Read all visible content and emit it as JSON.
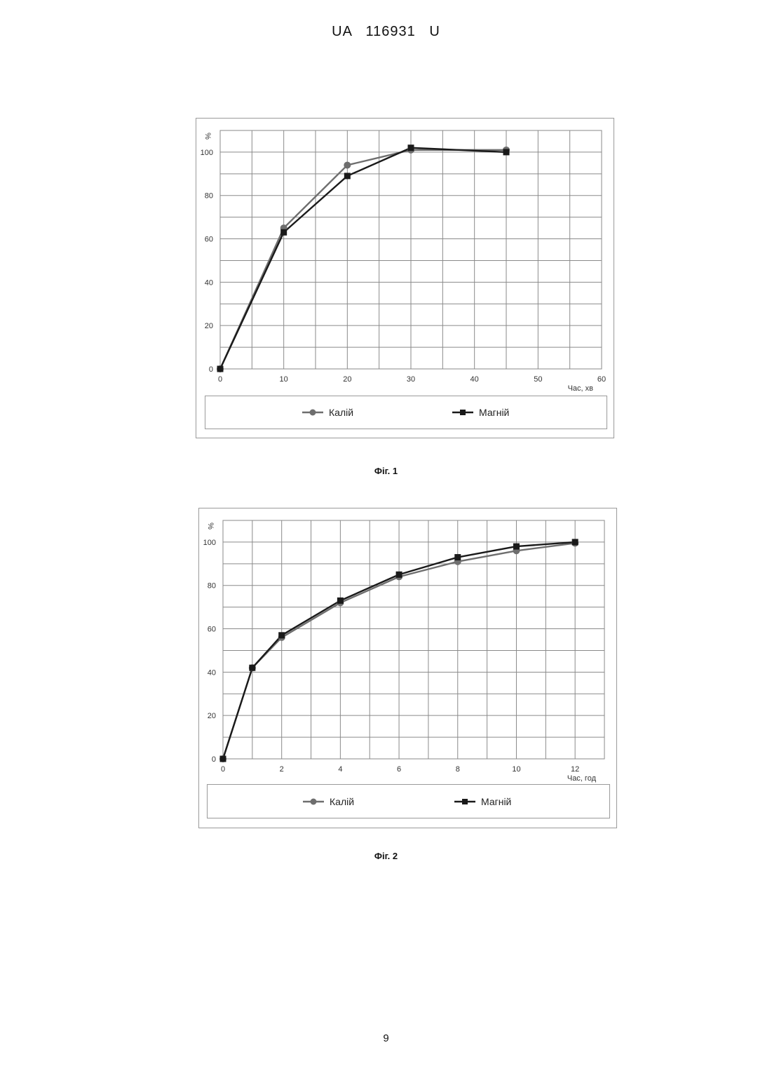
{
  "header": {
    "text": "UA   116931   U"
  },
  "page_number": "9",
  "colors": {
    "kaliy": "#6e6e6e",
    "magniy": "#1a1a1a",
    "grid": "#8a8a8a",
    "frame": "#9a9a9a"
  },
  "figures": [
    {
      "caption": "Фіг. 1",
      "legend": {
        "kaliy": "Калій",
        "magniy": "Магній"
      }
    },
    {
      "caption": "Фіг. 2",
      "legend": {
        "kaliy": "Калій",
        "magniy": "Магній"
      }
    }
  ],
  "chart_data": [
    {
      "type": "line",
      "title": "",
      "xlabel": "Час, хв",
      "ylabel": "%",
      "xlim": [
        0,
        60
      ],
      "ylim": [
        0,
        110
      ],
      "x_ticks": [
        0,
        10,
        20,
        30,
        40,
        50,
        60
      ],
      "y_ticks": [
        0,
        20,
        40,
        60,
        80,
        100
      ],
      "grid": true,
      "legend_position": "bottom",
      "series": [
        {
          "name": "Калій",
          "marker": "circle",
          "color": "#6e6e6e",
          "x": [
            0,
            10,
            20,
            30,
            45
          ],
          "y": [
            0,
            65,
            94,
            101,
            101
          ]
        },
        {
          "name": "Магній",
          "marker": "square",
          "color": "#1a1a1a",
          "x": [
            0,
            10,
            20,
            30,
            45
          ],
          "y": [
            0,
            63,
            89,
            102,
            100
          ]
        }
      ]
    },
    {
      "type": "line",
      "title": "",
      "xlabel": "Час, год",
      "ylabel": "%",
      "xlim": [
        0,
        13
      ],
      "ylim": [
        0,
        110
      ],
      "x_ticks": [
        0,
        2,
        4,
        6,
        8,
        10,
        12
      ],
      "y_ticks": [
        0,
        20,
        40,
        60,
        80,
        100
      ],
      "grid": true,
      "legend_position": "bottom",
      "series": [
        {
          "name": "Калій",
          "marker": "circle",
          "color": "#6e6e6e",
          "x": [
            0,
            1,
            2,
            4,
            6,
            8,
            10,
            12
          ],
          "y": [
            0,
            42,
            56,
            72,
            84,
            91,
            96,
            99.5
          ]
        },
        {
          "name": "Магній",
          "marker": "square",
          "color": "#1a1a1a",
          "x": [
            0,
            1,
            2,
            4,
            6,
            8,
            10,
            12
          ],
          "y": [
            0,
            42,
            57,
            73,
            85,
            93,
            98,
            100
          ]
        }
      ]
    }
  ]
}
